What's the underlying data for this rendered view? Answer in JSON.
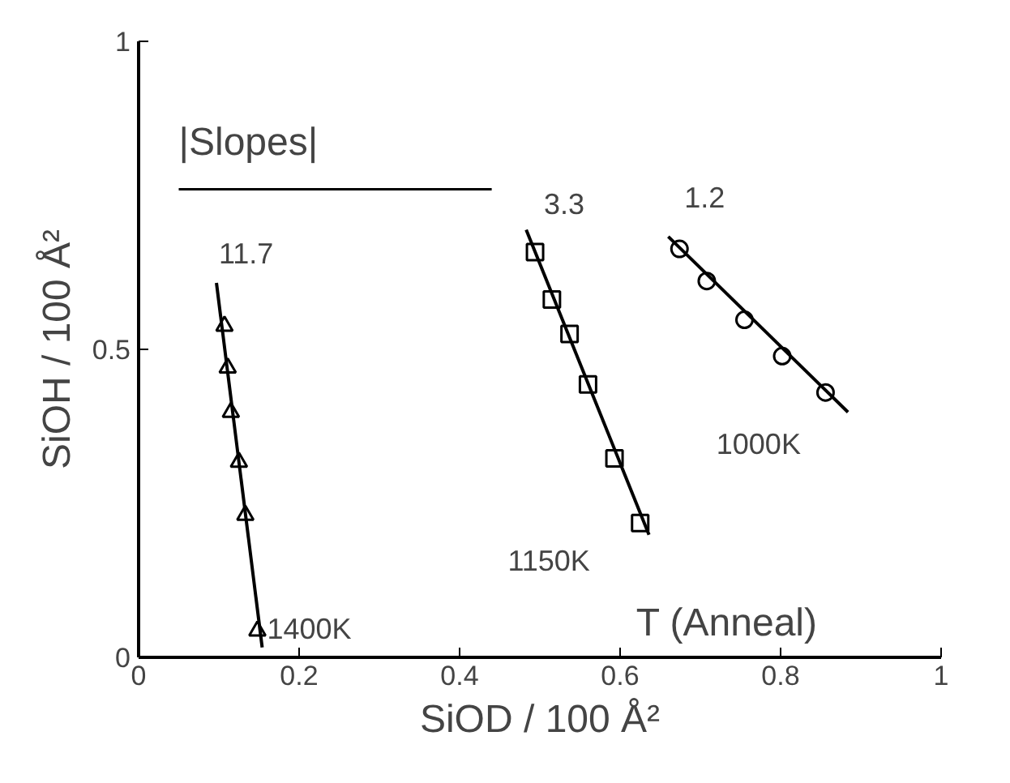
{
  "chart_data": {
    "type": "scatter",
    "xlabel": "SiOD / 100 Å²",
    "ylabel": "SiOH / 100 Å²",
    "xlim": [
      0,
      1
    ],
    "ylim": [
      0,
      1
    ],
    "xticks": [
      0,
      0.2,
      0.4,
      0.6,
      0.8,
      1
    ],
    "yticks": [
      0,
      0.5,
      1
    ],
    "grid": false,
    "series": [
      {
        "marker": "triangle",
        "color": "#000000",
        "x": [
          0.107,
          0.111,
          0.115,
          0.125,
          0.133,
          0.148
        ],
        "values": [
          0.538,
          0.47,
          0.398,
          0.317,
          0.231,
          0.043
        ]
      },
      {
        "type": "line",
        "marker": "none",
        "color": "#000000",
        "x": [
          0.097,
          0.154
        ],
        "values": [
          0.608,
          0.016
        ]
      },
      {
        "marker": "square",
        "color": "#000000",
        "x": [
          0.494,
          0.515,
          0.537,
          0.56,
          0.593,
          0.625
        ],
        "values": [
          0.658,
          0.581,
          0.525,
          0.443,
          0.323,
          0.218
        ]
      },
      {
        "type": "line",
        "marker": "none",
        "color": "#000000",
        "x": [
          0.483,
          0.636
        ],
        "values": [
          0.694,
          0.199
        ]
      },
      {
        "marker": "circle",
        "color": "#000000",
        "x": [
          0.674,
          0.708,
          0.755,
          0.802,
          0.856
        ],
        "values": [
          0.663,
          0.611,
          0.548,
          0.489,
          0.43
        ]
      },
      {
        "type": "line",
        "marker": "none",
        "color": "#000000",
        "x": [
          0.66,
          0.884
        ],
        "values": [
          0.683,
          0.398
        ]
      }
    ],
    "annotations": [
      "|Slopes|",
      "11.7",
      "3.3",
      "1.2",
      "1400K",
      "1150K",
      "1000K",
      "T (Anneal)"
    ]
  }
}
